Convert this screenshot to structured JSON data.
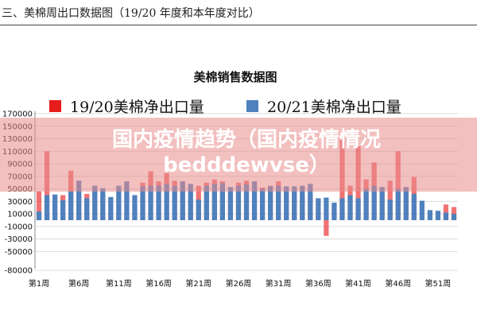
{
  "heading": "三、美棉周出口数据图（19/20 年度和本年度对比）",
  "overlay_text": "国内疫情趋势（国内疫情情况bedddewvse）",
  "colors": {
    "series_a": "#e81c1c",
    "series_b": "#4f81bd"
  },
  "chart_data": {
    "type": "bar",
    "title": "美棉销售数据图",
    "ylim": [
      -80000,
      170000
    ],
    "yticks": [
      170000,
      150000,
      130000,
      110000,
      90000,
      70000,
      50000,
      30000,
      10000,
      -10000,
      -30000,
      -50000,
      -80000
    ],
    "ytick_labels": [
      "170000",
      "150000",
      "130000",
      "110000",
      "90000",
      "70000",
      "50000",
      "30000",
      "10000",
      "-10000",
      "-30000",
      "-50000",
      "-80000"
    ],
    "xtick_labels": [
      "第1周",
      "第6周",
      "第11周",
      "第16周",
      "第21周",
      "第26周",
      "第31周",
      "第36周",
      "第41周",
      "第46周",
      "第51周"
    ],
    "xtick_index": [
      0,
      5,
      10,
      15,
      20,
      25,
      30,
      35,
      40,
      45,
      50
    ],
    "categories": [
      "第1周",
      "第2周",
      "第3周",
      "第4周",
      "第5周",
      "第6周",
      "第7周",
      "第8周",
      "第9周",
      "第10周",
      "第11周",
      "第12周",
      "第13周",
      "第14周",
      "第15周",
      "第16周",
      "第17周",
      "第18周",
      "第19周",
      "第20周",
      "第21周",
      "第22周",
      "第23周",
      "第24周",
      "第25周",
      "第26周",
      "第27周",
      "第28周",
      "第29周",
      "第30周",
      "第31周",
      "第32周",
      "第33周",
      "第34周",
      "第35周",
      "第36周",
      "第37周",
      "第38周",
      "第39周",
      "第40周",
      "第41周",
      "第42周",
      "第43周",
      "第44周",
      "第45周",
      "第46周",
      "第47周",
      "第48周",
      "第49周",
      "第50周",
      "第51周",
      "第52周",
      "第53周"
    ],
    "legend": [
      "19/20美棉净出口量",
      "20/21美棉净出口量"
    ],
    "series": [
      {
        "name": "19/20美棉净出口量",
        "values": [
          46000,
          110000,
          39000,
          40000,
          79000,
          40000,
          42000,
          55000,
          40000,
          35000,
          46000,
          55000,
          25000,
          60000,
          78000,
          62000,
          75000,
          63000,
          55000,
          35000,
          55000,
          60000,
          65000,
          62000,
          43000,
          60000,
          63000,
          55000,
          52000,
          55000,
          62000,
          51000,
          48000,
          40000,
          40000,
          27000,
          -25000,
          23000,
          128000,
          55000,
          118000,
          65000,
          92000,
          42000,
          63000,
          110000,
          47000,
          69000,
          null,
          null,
          null,
          25000,
          21000
        ]
      },
      {
        "name": "20/21美棉净出口量",
        "values": [
          14000,
          40000,
          41000,
          32000,
          46000,
          63000,
          35000,
          55000,
          51000,
          37000,
          55000,
          62000,
          40000,
          54000,
          55000,
          55000,
          58000,
          55000,
          62000,
          58000,
          33000,
          55000,
          58000,
          59000,
          53000,
          55000,
          57000,
          62000,
          50000,
          54000,
          55000,
          54000,
          54000,
          55000,
          58000,
          35000,
          36000,
          28000,
          35000,
          40000,
          35000,
          50000,
          55000,
          53000,
          33000,
          50000,
          53000,
          42000,
          31000,
          16000,
          15000,
          12000,
          10000
        ]
      }
    ]
  }
}
